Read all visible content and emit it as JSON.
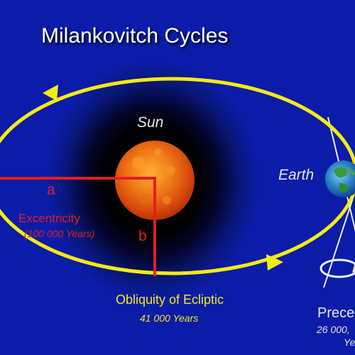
{
  "title": "Milankovitch Cycles",
  "labels": {
    "sun": "Sun",
    "earth": "Earth",
    "a": "a",
    "b": "b",
    "excentricity": "Excentricity",
    "excentricity_period": "(100 000 Years)",
    "obliquity": "Obliquity of Ecliptic",
    "obliquity_period": "41 000 Years",
    "precession": "Prece",
    "precession_period": "26 000,",
    "precession_years": "Ye"
  },
  "colors": {
    "background": "#0b1ca8",
    "orbit": "#f5ec12",
    "axes": "#e21f1f",
    "sun": "#e85a10",
    "earth": "#1e7fc8"
  },
  "icons": [
    "orbit-arrow-icon",
    "precession-arrow-icon"
  ]
}
